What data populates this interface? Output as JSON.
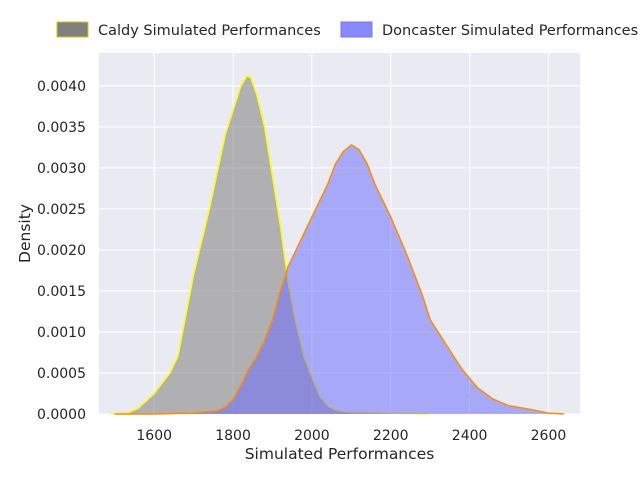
{
  "chart_data": {
    "type": "area",
    "title": "",
    "xlabel": "Simulated Performances",
    "ylabel": "Density",
    "xlim": [
      1460,
      2680
    ],
    "ylim": [
      0,
      0.0044
    ],
    "xticks": [
      1600,
      1800,
      2000,
      2200,
      2400,
      2600
    ],
    "xtick_labels": [
      "1600",
      "1800",
      "2000",
      "2200",
      "2400",
      "2600"
    ],
    "yticks": [
      0,
      0.0005,
      0.001,
      0.0015,
      0.002,
      0.0025,
      0.003,
      0.0035,
      0.004
    ],
    "ytick_labels": [
      "0.0000",
      "0.0005",
      "0.0010",
      "0.0015",
      "0.0020",
      "0.0025",
      "0.0030",
      "0.0035",
      "0.0040"
    ],
    "grid": true,
    "legend_position": "top",
    "background": "#eaeaf2",
    "series": [
      {
        "name": "Caldy Simulated Performances",
        "legend_fill": "#808080",
        "legend_edge": "#cccc00",
        "fill": "#808080",
        "fill_opacity": 0.55,
        "line": "#ffff00",
        "x": [
          1490,
          1530,
          1560,
          1600,
          1640,
          1660,
          1680,
          1700,
          1720,
          1740,
          1760,
          1780,
          1800,
          1820,
          1835,
          1845,
          1860,
          1880,
          1900,
          1920,
          1940,
          1960,
          1980,
          2000,
          2020,
          2040,
          2060,
          2080,
          2100,
          2150,
          2200,
          2300
        ],
        "y": [
          0,
          1e-05,
          7e-05,
          0.00025,
          0.0005,
          0.0007,
          0.0012,
          0.0017,
          0.0021,
          0.0025,
          0.00295,
          0.0034,
          0.0037,
          0.004,
          0.00412,
          0.0041,
          0.0039,
          0.0035,
          0.0029,
          0.0023,
          0.0016,
          0.0011,
          0.0007,
          0.00045,
          0.00022,
          0.0001,
          5e-05,
          3e-05,
          2e-05,
          2e-05,
          1e-05,
          0
        ]
      },
      {
        "name": "Doncaster Simulated Performances",
        "legend_fill": "#8888ff",
        "legend_edge": "#7777ee",
        "fill": "#6666ff",
        "fill_opacity": 0.5,
        "line": "#ff8c00",
        "x": [
          1500,
          1600,
          1700,
          1760,
          1780,
          1800,
          1820,
          1840,
          1860,
          1880,
          1900,
          1920,
          1940,
          1960,
          1980,
          2000,
          2020,
          2040,
          2060,
          2080,
          2100,
          2120,
          2140,
          2160,
          2180,
          2200,
          2240,
          2280,
          2300,
          2340,
          2380,
          2420,
          2460,
          2500,
          2550,
          2580,
          2600,
          2640
        ],
        "y": [
          0,
          0,
          1e-05,
          4e-05,
          8e-05,
          0.00018,
          0.00035,
          0.00055,
          0.0007,
          0.0009,
          0.00115,
          0.0015,
          0.0018,
          0.002,
          0.0022,
          0.0024,
          0.0026,
          0.0028,
          0.00305,
          0.0032,
          0.00328,
          0.00322,
          0.00305,
          0.0028,
          0.0026,
          0.0024,
          0.00195,
          0.00145,
          0.00115,
          0.00085,
          0.00055,
          0.00032,
          0.00018,
          0.0001,
          6e-05,
          3e-05,
          1e-05,
          0
        ]
      }
    ]
  }
}
